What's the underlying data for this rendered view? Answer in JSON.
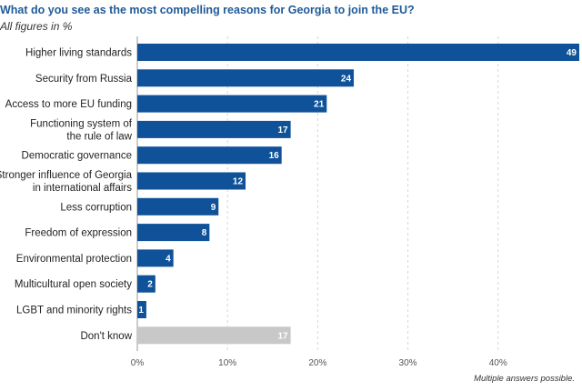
{
  "chart_data": {
    "type": "bar",
    "orientation": "horizontal",
    "title": "What do you see as the most compelling reasons for Georgia to join the EU?",
    "subtitle": "All figures in %",
    "note": "Multiple answers possible.",
    "categories": [
      "Higher living standards",
      "Security from Russia",
      "Access to more EU funding",
      "Functioning system of\nthe rule of law",
      "Democratic governance",
      "Stronger influence of Georgia\nin international affairs",
      "Less corruption",
      "Freedom of expression",
      "Environmental protection",
      "Multicultural open society",
      "LGBT and minority rights",
      "Don't know"
    ],
    "values": [
      49,
      24,
      21,
      17,
      16,
      12,
      9,
      8,
      4,
      2,
      1,
      17
    ],
    "value_labels": [
      "49",
      "24",
      "21",
      "17",
      "16",
      "12",
      "9",
      "8",
      "4",
      "2",
      "1",
      "17"
    ],
    "colors": [
      "#0f5299",
      "#0f5299",
      "#0f5299",
      "#0f5299",
      "#0f5299",
      "#0f5299",
      "#0f5299",
      "#0f5299",
      "#0f5299",
      "#0f5299",
      "#0f5299",
      "#c8c8c8"
    ],
    "xticks": [
      0,
      10,
      20,
      30,
      40
    ],
    "xtick_labels": [
      "0%",
      "10%",
      "20%",
      "30%",
      "40%"
    ],
    "xlim": [
      0,
      49
    ],
    "grid": true
  }
}
